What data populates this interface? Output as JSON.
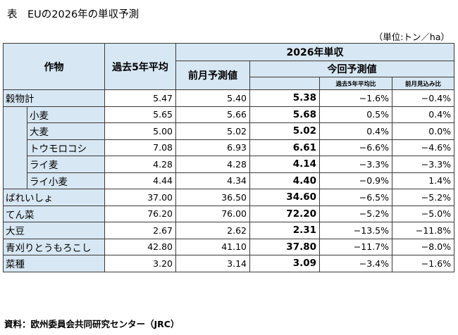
{
  "title": "表　EUの2026年の単収予測",
  "unit": "（単位:トン／ha）",
  "headers": {
    "crop": "作物",
    "avg5": "過去5年平均",
    "group_2026": "2026年単収",
    "prev_month": "前月予測値",
    "current": "今回予測値",
    "vs_avg5": "過去5年平均比",
    "vs_prev": "前月見込み比"
  },
  "rows": [
    {
      "name": "穀物計",
      "avg5": "5.47",
      "prev": "5.40",
      "cur": "5.38",
      "vs_avg5": "−1.6%",
      "vs_prev": "−0.4%"
    },
    {
      "name": "小麦",
      "avg5": "5.65",
      "prev": "5.66",
      "cur": "5.68",
      "vs_avg5": "0.5%",
      "vs_prev": "0.4%"
    },
    {
      "name": "大麦",
      "avg5": "5.00",
      "prev": "5.02",
      "cur": "5.02",
      "vs_avg5": "0.4%",
      "vs_prev": "0.0%"
    },
    {
      "name": "トウモロコシ",
      "avg5": "7.08",
      "prev": "6.93",
      "cur": "6.61",
      "vs_avg5": "−6.6%",
      "vs_prev": "−4.6%"
    },
    {
      "name": "ライ麦",
      "avg5": "4.28",
      "prev": "4.28",
      "cur": "4.14",
      "vs_avg5": "−3.3%",
      "vs_prev": "−3.3%"
    },
    {
      "name": "ライ小麦",
      "avg5": "4.44",
      "prev": "4.34",
      "cur": "4.40",
      "vs_avg5": "−0.9%",
      "vs_prev": "1.4%"
    },
    {
      "name": "ばれいしょ",
      "avg5": "37.00",
      "prev": "36.50",
      "cur": "34.60",
      "vs_avg5": "−6.5%",
      "vs_prev": "−5.2%"
    },
    {
      "name": "てん菜",
      "avg5": "76.20",
      "prev": "76.00",
      "cur": "72.20",
      "vs_avg5": "−5.2%",
      "vs_prev": "−5.0%"
    },
    {
      "name": "大豆",
      "avg5": "2.67",
      "prev": "2.62",
      "cur": "2.31",
      "vs_avg5": "−13.5%",
      "vs_prev": "−11.8%"
    },
    {
      "name": "青刈りとうもろこし",
      "avg5": "42.80",
      "prev": "41.10",
      "cur": "37.80",
      "vs_avg5": "−11.7%",
      "vs_prev": "−8.0%"
    },
    {
      "name": "菜種",
      "avg5": "3.20",
      "prev": "3.14",
      "cur": "3.09",
      "vs_avg5": "−3.4%",
      "vs_prev": "−1.6%"
    }
  ],
  "source": "資料：欧州委員会共同研究センター（JRC）"
}
